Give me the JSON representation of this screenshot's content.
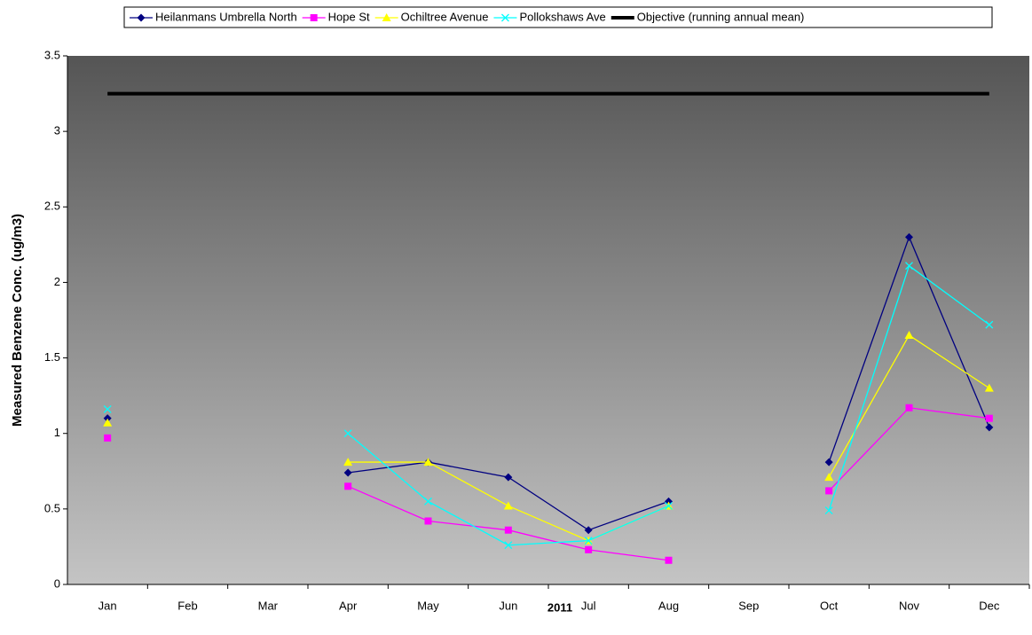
{
  "chart_data": {
    "type": "line",
    "x_label": "2011",
    "y_label": "Measured Benzene Conc. (ug/m3)",
    "categories": [
      "Jan",
      "Feb",
      "Mar",
      "Apr",
      "May",
      "Jun",
      "Jul",
      "Aug",
      "Sep",
      "Oct",
      "Nov",
      "Dec"
    ],
    "ylim": [
      0,
      3.5
    ],
    "yticks": [
      0,
      0.5,
      1,
      1.5,
      2,
      2.5,
      3,
      3.5
    ],
    "series": [
      {
        "name": "Heilanmans Umbrella North",
        "color": "#000080",
        "marker": "diamond",
        "values": [
          1.1,
          null,
          null,
          0.74,
          0.81,
          0.71,
          0.36,
          0.55,
          null,
          0.81,
          2.3,
          1.04
        ]
      },
      {
        "name": "Hope St",
        "color": "#ff00ff",
        "marker": "square",
        "values": [
          0.97,
          null,
          null,
          0.65,
          0.42,
          0.36,
          0.23,
          0.16,
          null,
          0.62,
          1.17,
          1.1
        ]
      },
      {
        "name": "Ochiltree Avenue",
        "color": "#ffff00",
        "marker": "triangle",
        "values": [
          1.07,
          null,
          null,
          0.81,
          0.81,
          0.52,
          0.29,
          0.52,
          null,
          0.71,
          1.65,
          1.3
        ]
      },
      {
        "name": "Pollokshaws Ave",
        "color": "#00ffff",
        "marker": "x",
        "values": [
          1.16,
          null,
          null,
          1.0,
          0.55,
          0.26,
          0.29,
          0.52,
          null,
          0.49,
          2.11,
          1.72
        ]
      },
      {
        "name": "Objective (running annual mean)",
        "color": "#000000",
        "marker": "none",
        "width": 4,
        "values": [
          3.25,
          3.25,
          3.25,
          3.25,
          3.25,
          3.25,
          3.25,
          3.25,
          3.25,
          3.25,
          3.25,
          3.25
        ]
      }
    ]
  }
}
